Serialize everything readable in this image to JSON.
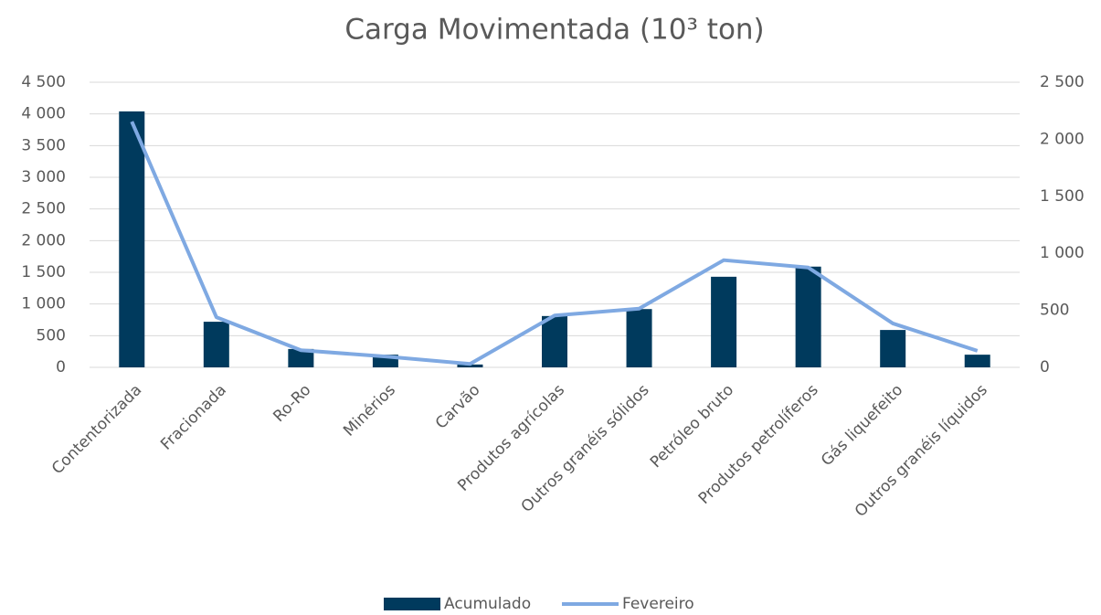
{
  "chart_data": {
    "type": "bar_line",
    "title": "Carga Movimentada (10³ ton)",
    "categories": [
      "Contentorizada",
      "Fracionada",
      "Ro-Ro",
      "Minérios",
      "Carvão",
      "Produtos agrícolas",
      "Outros granéis sólidos",
      "Petróleo bruto",
      "Produtos petrolíferos",
      "Gás liquefeito",
      "Outros granéis líquidos"
    ],
    "series": [
      {
        "name": "Acumulado",
        "type": "bar",
        "color": "#003a5d",
        "values": [
          4040,
          720,
          290,
          200,
          45,
          810,
          920,
          1430,
          1590,
          590,
          200
        ]
      },
      {
        "name": "Fevereiro",
        "type": "line",
        "axis": "y2",
        "color": "#7fa9e2",
        "values": [
          2155,
          440,
          150,
          95,
          30,
          455,
          515,
          940,
          875,
          385,
          145
        ]
      }
    ],
    "ylim": [
      0,
      4500
    ],
    "yticks": [
      0,
      {
        "value": 500,
        "label": "500"
      },
      {
        "value": 1000,
        "label": "1 000"
      },
      {
        "value": 1500,
        "label": "1 500"
      },
      {
        "value": 2000,
        "label": "2 000"
      },
      {
        "value": 2500,
        "label": "2 500"
      },
      {
        "value": 3000,
        "label": "3 000"
      },
      {
        "value": 3500,
        "label": "3 500"
      },
      {
        "value": 4000,
        "label": "4 000"
      },
      {
        "value": 4500,
        "label": "4 500"
      }
    ],
    "y2lim": [
      0,
      2500
    ],
    "y2ticks": [
      0,
      500,
      {
        "value": 1000,
        "label": "1 000"
      },
      {
        "value": 1500,
        "label": "1 500"
      },
      {
        "value": 2000,
        "label": "2 000"
      },
      {
        "value": 2500,
        "label": "2 500"
      }
    ],
    "grid": true,
    "legend": "bottom"
  }
}
